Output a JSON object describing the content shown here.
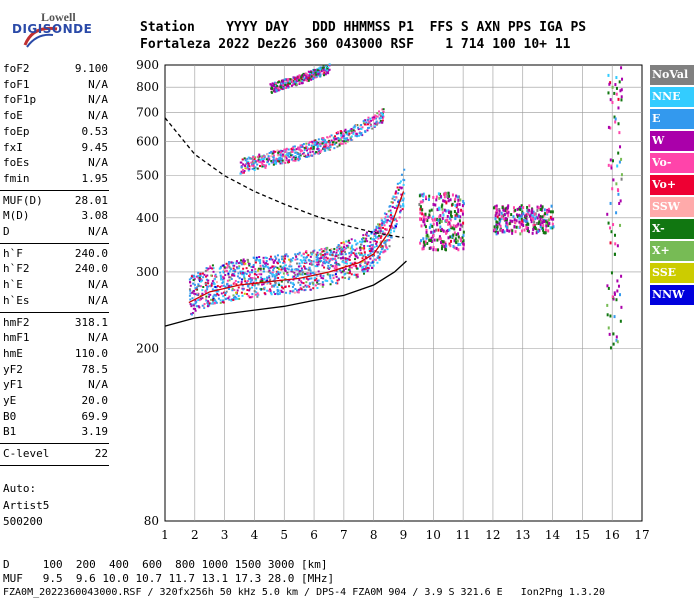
{
  "logo": {
    "lowell": "Lowell",
    "digisonde": "DIGISONDE"
  },
  "header": {
    "labels": "Station    YYYY DAY   DDD HHMMSS P1  FFS S AXN PPS IGA PS",
    "values": "Fortaleza 2022 Dez26 360 043000 RSF    1 714 100 10+ 11"
  },
  "params": [
    {
      "label": "foF2",
      "value": "9.100"
    },
    {
      "label": "foF1",
      "value": "N/A"
    },
    {
      "label": "foF1p",
      "value": "N/A"
    },
    {
      "label": "foE",
      "value": "N/A"
    },
    {
      "label": "foEp",
      "value": "0.53"
    },
    {
      "label": "fxI",
      "value": "9.45"
    },
    {
      "label": "foEs",
      "value": "N/A"
    },
    {
      "label": "fmin",
      "value": "1.95"
    },
    {
      "label": "MUF(D)",
      "value": "28.01"
    },
    {
      "label": "M(D)",
      "value": "3.08"
    },
    {
      "label": "D",
      "value": "N/A"
    },
    {
      "label": "h`F",
      "value": "240.0"
    },
    {
      "label": "h`F2",
      "value": "240.0"
    },
    {
      "label": "h`E",
      "value": "N/A"
    },
    {
      "label": "h`Es",
      "value": "N/A"
    },
    {
      "label": "hmF2",
      "value": "318.1"
    },
    {
      "label": "hmF1",
      "value": "N/A"
    },
    {
      "label": "hmE",
      "value": "110.0"
    },
    {
      "label": "yF2",
      "value": "78.5"
    },
    {
      "label": "yF1",
      "value": "N/A"
    },
    {
      "label": "yE",
      "value": "20.0"
    },
    {
      "label": "B0",
      "value": "69.9"
    },
    {
      "label": "B1",
      "value": "3.19"
    },
    {
      "label": "C-level",
      "value": "22"
    }
  ],
  "auto": {
    "line1": "Auto:",
    "line2": "Artist5",
    "line3": "500200"
  },
  "footer": {
    "d_row": "D     100  200  400  600  800 1000 1500 3000 [km]",
    "muf_row": "MUF   9.5  9.6 10.0 10.7 11.7 13.1 17.3 28.0 [MHz]",
    "info_row": "FZA0M_2022360043000.RSF / 320fx256h 50 kHz 5.0 km / DPS-4 FZA0M 904 / 3.9 S 321.6 E   Ion2Png 1.3.20"
  },
  "legend": [
    {
      "label": "NoVal",
      "color": "#808080"
    },
    {
      "label": "NNE",
      "color": "#33ccff"
    },
    {
      "label": "E",
      "color": "#3399ee"
    },
    {
      "label": "W",
      "color": "#aa00aa"
    },
    {
      "label": "Vo-",
      "color": "#ff44aa"
    },
    {
      "label": "Vo+",
      "color": "#ee0033"
    },
    {
      "label": "SSW",
      "color": "#ffaaaa"
    },
    {
      "label": "X-",
      "color": "#117711"
    },
    {
      "label": "X+",
      "color": "#77bb55"
    },
    {
      "label": "SSE",
      "color": "#cccc00"
    },
    {
      "label": "NNW",
      "color": "#0000dd"
    }
  ],
  "chart_data": {
    "type": "scatter",
    "title": "",
    "xlabel": "",
    "ylabel": "",
    "xlim": [
      1,
      17
    ],
    "ylim": [
      80,
      900
    ],
    "x_ticks": [
      1,
      2,
      3,
      4,
      5,
      6,
      7,
      8,
      9,
      10,
      11,
      12,
      13,
      14,
      15,
      16,
      17
    ],
    "y_ticks": [
      80,
      200,
      300,
      400,
      500,
      600,
      700,
      800,
      900
    ],
    "y_scale": "log",
    "grid": true,
    "traces": [
      {
        "name": "1st hop F2 trace",
        "freq_mhz": [
          1.8,
          2.5,
          3.5,
          4.5,
          5.5,
          6.5,
          7.5,
          8.0,
          8.5,
          9.0
        ],
        "height_km": [
          255,
          270,
          280,
          285,
          290,
          300,
          315,
          330,
          370,
          460
        ]
      },
      {
        "name": "2nd hop trace",
        "freq_mhz": [
          3.5,
          4.5,
          5.5,
          6.5,
          7.5,
          8.3
        ],
        "height_km": [
          520,
          540,
          560,
          590,
          630,
          680
        ]
      },
      {
        "name": "3rd hop trace",
        "freq_mhz": [
          4.5,
          5.5,
          6.5
        ],
        "height_km": [
          790,
          830,
          880
        ]
      }
    ],
    "scatter_clusters": [
      {
        "freq_mhz": [
          9.5,
          11.0
        ],
        "height_km": [
          340,
          460
        ],
        "note": "NNE/NNW echoes"
      },
      {
        "freq_mhz": [
          12.0,
          14.0
        ],
        "height_km": [
          370,
          430
        ],
        "note": "scattered echoes"
      },
      {
        "freq_mhz": [
          15.8,
          16.3
        ],
        "height_km": [
          200,
          900
        ],
        "note": "interference near 16 MHz"
      }
    ],
    "profile_curve": {
      "freq_mhz": [
        1.0,
        2.0,
        3.0,
        4.0,
        5.0,
        6.0,
        7.0,
        8.0,
        8.7,
        9.1
      ],
      "height_km": [
        225,
        235,
        240,
        245,
        250,
        258,
        265,
        280,
        300,
        318
      ]
    },
    "model_curve": {
      "freq_mhz": [
        1.0,
        2.0,
        3.0,
        4.0,
        5.0,
        6.0,
        7.0,
        8.0,
        9.0
      ],
      "height_km": [
        680,
        560,
        500,
        460,
        430,
        405,
        385,
        370,
        360
      ]
    }
  }
}
